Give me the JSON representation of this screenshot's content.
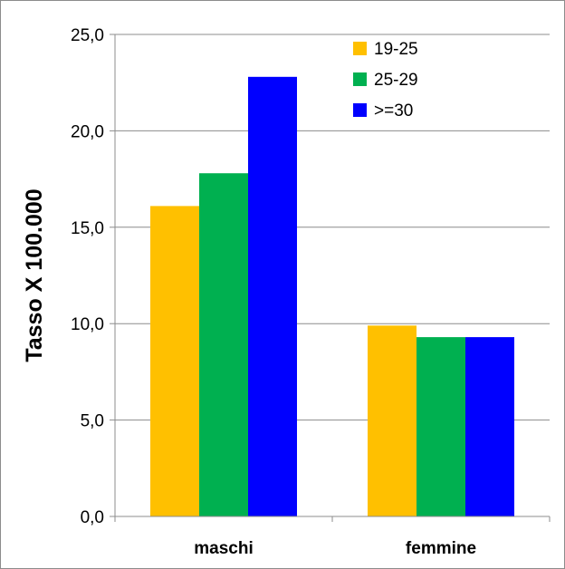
{
  "chart_data": {
    "type": "bar",
    "title": "",
    "xlabel": "",
    "ylabel": "Tasso X 100.000",
    "categories": [
      "maschi",
      "femmine"
    ],
    "series": [
      {
        "name": "19-25",
        "color": "#FFC000",
        "values": [
          16.1,
          9.9
        ]
      },
      {
        "name": "25-29",
        "color": "#00B050",
        "values": [
          17.8,
          9.3
        ]
      },
      {
        "name": ">=30",
        "color": "#0000FF",
        "values": [
          22.8,
          9.3
        ]
      }
    ],
    "ylim": [
      0,
      25
    ],
    "yticks": [
      "0,0",
      "5,0",
      "10,0",
      "15,0",
      "20,0",
      "25,0"
    ],
    "ytick_values": [
      0,
      5,
      10,
      15,
      20,
      25
    ],
    "grid": true,
    "legend_position": "top-right"
  }
}
